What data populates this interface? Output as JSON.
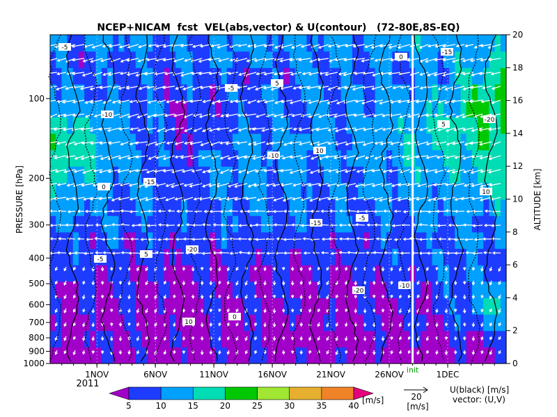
{
  "chart_data": {
    "type": "heatmap",
    "title": "NCEP+NICAM  fcst  VEL(abs,vector) & U(contour)   (72-80E,8S-EQ)",
    "x_axis": {
      "type": "date",
      "tick_labels": [
        "1NOV",
        "6NOV",
        "11NOV",
        "16NOV",
        "21NOV",
        "26NOV",
        "1DEC"
      ],
      "year_label": "2011",
      "range": [
        "2011-10-28",
        "2011-12-06"
      ]
    },
    "y_axis_left": {
      "label": "PRESSURE [hPa]",
      "scale": "log",
      "range": [
        1000,
        50
      ],
      "tick_labels": [
        "100",
        "200",
        "300",
        "400",
        "500",
        "600",
        "700",
        "800",
        "900",
        "1000"
      ]
    },
    "y_axis_right": {
      "label": "ALTITUDE [km]",
      "range": [
        0,
        20
      ],
      "tick_labels": [
        "0",
        "2",
        "4",
        "6",
        "8",
        "10",
        "12",
        "14",
        "16",
        "18",
        "20"
      ]
    },
    "init_marker": {
      "date": "2011-11-28",
      "label": "init"
    },
    "colorbar": {
      "levels": [
        5,
        10,
        15,
        20,
        25,
        30,
        35,
        40
      ],
      "tick_labels": [
        "5",
        "10",
        "15",
        "20",
        "25",
        "30",
        "35",
        "40"
      ],
      "unit": "[m/s]",
      "colors": [
        "#a000c8",
        "#1e3cff",
        "#00a0ff",
        "#00dcb4",
        "#00c800",
        "#a0e632",
        "#e6af2d",
        "#f08228",
        "#e6007d"
      ]
    },
    "vector_reference": {
      "value": "20",
      "unit": "[m/s]"
    },
    "legend_text": {
      "line1": "U(black) [m/s]",
      "line2": "vector: (U,V)"
    },
    "contour_labels": [
      "-5",
      "-10",
      "-15",
      "-20",
      "0",
      "5",
      "10"
    ],
    "speed_field": {
      "rows_bottom_to_top_km": [
        0.5,
        1.5,
        2.5,
        3.5,
        4.5,
        5.5,
        6.5,
        7.5,
        8.5,
        9.5,
        10.5,
        11.5,
        12.5,
        13.5,
        14.5,
        15.5,
        16.5,
        17.5,
        18.5,
        19.5
      ],
      "columns_per_period": 8,
      "values": [
        [
          3,
          4,
          3,
          5,
          4,
          3,
          3,
          6
        ],
        [
          4,
          5,
          3,
          4,
          3,
          4,
          4,
          8
        ],
        [
          4,
          4,
          3,
          4,
          3,
          4,
          5,
          14
        ],
        [
          5,
          5,
          4,
          4,
          4,
          4,
          6,
          16
        ],
        [
          6,
          5,
          4,
          5,
          4,
          5,
          7,
          12
        ],
        [
          7,
          6,
          5,
          6,
          5,
          6,
          8,
          10
        ],
        [
          8,
          7,
          6,
          7,
          6,
          7,
          9,
          10
        ],
        [
          9,
          8,
          7,
          8,
          7,
          8,
          9,
          11
        ],
        [
          10,
          9,
          8,
          9,
          8,
          9,
          10,
          11
        ],
        [
          12,
          10,
          8,
          10,
          9,
          10,
          11,
          12
        ],
        [
          14,
          11,
          8,
          11,
          10,
          11,
          12,
          14
        ],
        [
          16,
          11,
          7,
          12,
          11,
          11,
          13,
          16
        ],
        [
          19,
          12,
          7,
          12,
          11,
          12,
          14,
          18
        ],
        [
          21,
          13,
          6,
          11,
          11,
          12,
          16,
          20
        ],
        [
          18,
          12,
          6,
          10,
          10,
          12,
          15,
          22
        ],
        [
          14,
          11,
          6,
          9,
          10,
          11,
          14,
          23
        ],
        [
          11,
          9,
          7,
          8,
          9,
          11,
          13,
          22
        ],
        [
          9,
          8,
          8,
          8,
          9,
          10,
          12,
          18
        ],
        [
          8,
          9,
          9,
          10,
          10,
          11,
          12,
          15
        ],
        [
          10,
          11,
          10,
          12,
          11,
          12,
          13,
          14
        ]
      ]
    }
  }
}
